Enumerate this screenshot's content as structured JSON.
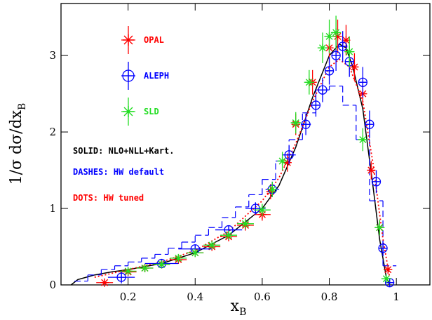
{
  "chart_data": {
    "type": "scatter",
    "x_label": {
      "main": "x",
      "sub": "B"
    },
    "y_label": {
      "main": "1/σ dσ/dx",
      "sub": "B"
    },
    "xlim": [
      0,
      1.1
    ],
    "ylim": [
      0,
      3.68
    ],
    "xticks": [
      0.2,
      0.4,
      0.6,
      0.8,
      1
    ],
    "yticks": [
      0,
      1,
      2,
      3
    ],
    "series": [
      {
        "name": "OPAL",
        "color": "#ff0000",
        "marker": "asterisk",
        "x": [
          0.13,
          0.2,
          0.25,
          0.3,
          0.35,
          0.4,
          0.45,
          0.5,
          0.55,
          0.6,
          0.625,
          0.675,
          0.7,
          0.75,
          0.8,
          0.825,
          0.85,
          0.875,
          0.9,
          0.925,
          0.95,
          0.975
        ],
        "values": [
          0.03,
          0.17,
          0.22,
          0.27,
          0.33,
          0.42,
          0.5,
          0.63,
          0.78,
          0.92,
          1.22,
          1.6,
          2.1,
          2.65,
          3.1,
          3.25,
          3.2,
          2.85,
          2.5,
          1.5,
          0.75,
          0.2
        ],
        "xerr": [
          0.025,
          0.025,
          0.025,
          0.025,
          0.025,
          0.025,
          0.025,
          0.025,
          0.025,
          0.025,
          0.0125,
          0.0125,
          0.0125,
          0.0125,
          0.0125,
          0.0125,
          0.0125,
          0.0125,
          0.0125,
          0.0125,
          0.0125,
          0.0125
        ],
        "yerr": [
          0.03,
          0.04,
          0.04,
          0.04,
          0.04,
          0.05,
          0.05,
          0.06,
          0.07,
          0.08,
          0.1,
          0.12,
          0.14,
          0.16,
          0.2,
          0.22,
          0.2,
          0.18,
          0.15,
          0.12,
          0.08,
          0.05
        ]
      },
      {
        "name": "ALEPH",
        "color": "#0000ff",
        "marker": "circle-cross",
        "x": [
          0.18,
          0.3,
          0.4,
          0.5,
          0.58,
          0.63,
          0.68,
          0.73,
          0.76,
          0.78,
          0.8,
          0.82,
          0.84,
          0.86,
          0.9,
          0.92,
          0.94,
          0.96,
          0.98
        ],
        "values": [
          0.1,
          0.28,
          0.47,
          0.72,
          1.0,
          1.25,
          1.7,
          2.1,
          2.35,
          2.55,
          2.8,
          3.0,
          3.12,
          2.92,
          2.65,
          2.1,
          1.35,
          0.48,
          0.03
        ],
        "xerr": [
          0.04,
          0.05,
          0.05,
          0.04,
          0.03,
          0.02,
          0.02,
          0.015,
          0.01,
          0.01,
          0.01,
          0.01,
          0.01,
          0.01,
          0.01,
          0.01,
          0.01,
          0.01,
          0.01
        ],
        "yerr": [
          0.08,
          0.05,
          0.05,
          0.06,
          0.08,
          0.1,
          0.12,
          0.14,
          0.15,
          0.16,
          0.18,
          0.2,
          0.2,
          0.2,
          0.2,
          0.18,
          0.15,
          0.1,
          0.05
        ]
      },
      {
        "name": "SLD",
        "color": "#22dd22",
        "marker": "asterisk",
        "x": [
          0.2,
          0.25,
          0.3,
          0.35,
          0.4,
          0.45,
          0.5,
          0.55,
          0.6,
          0.63,
          0.66,
          0.7,
          0.74,
          0.78,
          0.8,
          0.82,
          0.86,
          0.9,
          0.95,
          0.97
        ],
        "values": [
          0.18,
          0.22,
          0.27,
          0.35,
          0.42,
          0.52,
          0.65,
          0.8,
          0.98,
          1.25,
          1.62,
          2.12,
          2.65,
          3.1,
          3.25,
          3.3,
          3.05,
          1.9,
          0.75,
          0.08
        ],
        "xerr": [
          0.025,
          0.025,
          0.025,
          0.025,
          0.025,
          0.025,
          0.025,
          0.025,
          0.025,
          0.015,
          0.015,
          0.015,
          0.015,
          0.015,
          0.015,
          0.015,
          0.015,
          0.015,
          0.015,
          0.015
        ],
        "yerr": [
          0.04,
          0.04,
          0.04,
          0.04,
          0.05,
          0.05,
          0.06,
          0.07,
          0.08,
          0.1,
          0.12,
          0.14,
          0.16,
          0.2,
          0.22,
          0.22,
          0.2,
          0.15,
          0.1,
          0.05
        ]
      }
    ],
    "curves": [
      {
        "name": "SOLID: NLO+NLL+Kart.",
        "color": "#000000",
        "style": "solid",
        "x": [
          0.03,
          0.05,
          0.1,
          0.15,
          0.2,
          0.3,
          0.4,
          0.5,
          0.6,
          0.65,
          0.7,
          0.75,
          0.8,
          0.83,
          0.85,
          0.87,
          0.9,
          0.93,
          0.95,
          0.97,
          0.98
        ],
        "values": [
          0,
          0.07,
          0.13,
          0.17,
          0.2,
          0.28,
          0.42,
          0.65,
          1.0,
          1.3,
          1.8,
          2.45,
          3.0,
          3.15,
          3.1,
          2.85,
          2.3,
          1.3,
          0.6,
          0.1,
          0
        ]
      },
      {
        "name": "DASHES: HW default",
        "color": "#0000ff",
        "style": "steps",
        "bins": [
          0.04,
          0.08,
          0.12,
          0.16,
          0.2,
          0.24,
          0.28,
          0.32,
          0.36,
          0.4,
          0.44,
          0.48,
          0.52,
          0.56,
          0.6,
          0.64,
          0.68,
          0.72,
          0.76,
          0.8,
          0.84,
          0.88,
          0.92,
          0.96,
          1.0
        ],
        "values": [
          0.05,
          0.13,
          0.2,
          0.25,
          0.3,
          0.35,
          0.4,
          0.48,
          0.56,
          0.65,
          0.75,
          0.88,
          1.02,
          1.18,
          1.38,
          1.62,
          1.9,
          2.25,
          2.55,
          2.6,
          2.35,
          1.9,
          1.1,
          0.25
        ]
      },
      {
        "name": "DOTS: HW tuned",
        "color": "#ff0000",
        "style": "dotted",
        "x": [
          0.1,
          0.2,
          0.3,
          0.4,
          0.5,
          0.6,
          0.65,
          0.7,
          0.75,
          0.8,
          0.83,
          0.86,
          0.9,
          0.93,
          0.96,
          0.98
        ],
        "values": [
          0.1,
          0.2,
          0.3,
          0.45,
          0.7,
          1.1,
          1.4,
          1.85,
          2.4,
          2.85,
          2.95,
          2.85,
          2.4,
          1.6,
          0.6,
          0.1
        ]
      }
    ]
  }
}
